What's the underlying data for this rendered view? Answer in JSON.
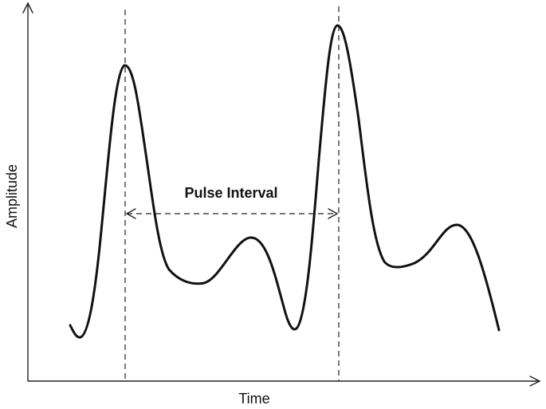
{
  "diagram": {
    "x_axis_label": "Time",
    "y_axis_label": "Amplitude",
    "interval_label": "Pulse Interval"
  }
}
